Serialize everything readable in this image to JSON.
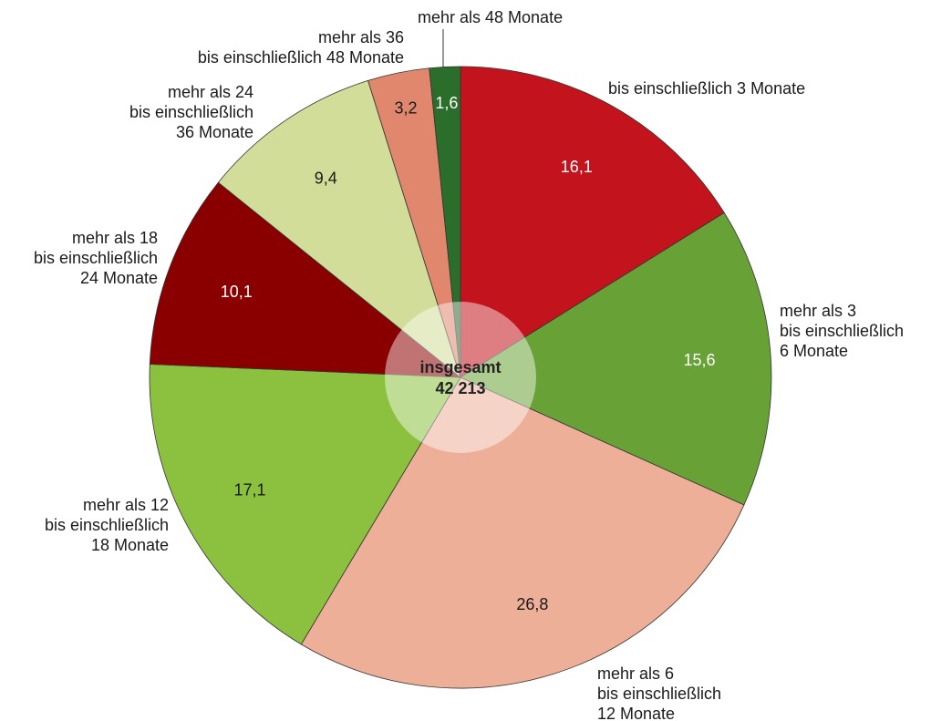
{
  "chart_data": {
    "type": "pie",
    "categories": [
      "bis einschließlich 3 Monate",
      "mehr als 3\nbis einschließlich\n6 Monate",
      "mehr als 6\nbis einschließlich\n12 Monate",
      "mehr als 12\nbis einschließlich\n18 Monate",
      "mehr als 18\nbis einschließlich\n24 Monate",
      "mehr als 24\nbis einschließlich\n36 Monate",
      "mehr als 36\nbis einschließlich 48 Monate",
      "mehr als 48 Monate"
    ],
    "values": [
      16.1,
      15.6,
      26.8,
      17.1,
      10.1,
      9.4,
      3.2,
      1.6
    ],
    "value_labels": [
      "16,1",
      "15,6",
      "26,8",
      "17,1",
      "10,1",
      "9,4",
      "3,2",
      "1,6"
    ],
    "colors": [
      "#c3141d",
      "#68a236",
      "#edaf98",
      "#8cc13f",
      "#8a0000",
      "#d1dd98",
      "#e0876e",
      "#2b6d2a"
    ],
    "center_label": "insgesamt",
    "center_value": {
      "value": 42213,
      "label": "42 213"
    }
  }
}
